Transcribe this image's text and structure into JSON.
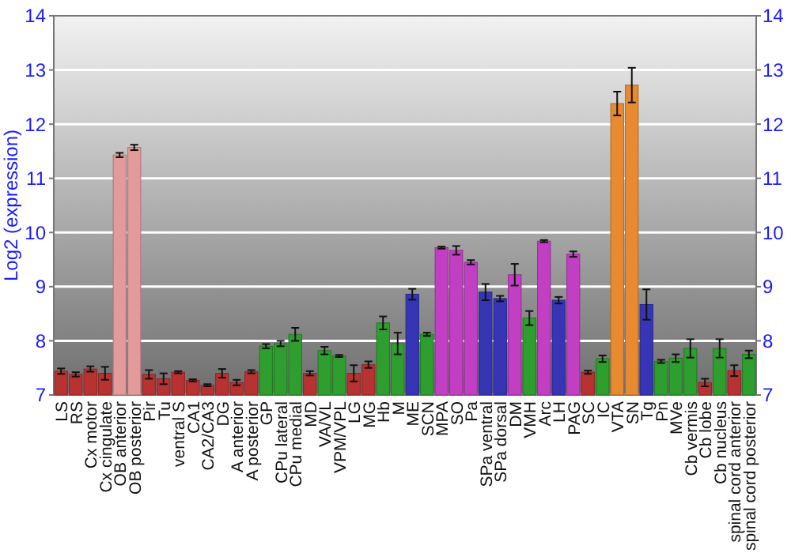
{
  "chart_data": {
    "type": "bar",
    "ylabel": "Log2 (expression)",
    "categories": [
      "LS",
      "RS",
      "Cx motor",
      "Cx cingulate",
      "OB anterior",
      "OB posterior",
      "Pir",
      "Tu",
      "ventral S",
      "CA1",
      "CA2/CA3",
      "DG",
      "A anterior",
      "A posterior",
      "GP",
      "CPu lateral",
      "CPu medial",
      "MD",
      "VA/VL",
      "VPM/VPL",
      "LG",
      "MG",
      "Hb",
      "M",
      "ME",
      "SCN",
      "MPA",
      "SO",
      "Pa",
      "SPa ventral",
      "SPa dorsal",
      "DM",
      "VMH",
      "Arc",
      "LH",
      "PAG",
      "SC",
      "IC",
      "VTA",
      "SN",
      "Tg",
      "Pn",
      "MVe",
      "Cb vermis",
      "Cb lobe",
      "Cb nucleus",
      "spinal cord anterior",
      "spinal cord posterior"
    ],
    "values": [
      7.44,
      7.38,
      7.48,
      7.4,
      11.43,
      11.57,
      7.38,
      7.3,
      7.42,
      7.27,
      7.18,
      7.4,
      7.23,
      7.43,
      7.9,
      7.95,
      8.12,
      7.4,
      7.82,
      7.72,
      7.4,
      7.56,
      8.33,
      7.95,
      8.86,
      8.12,
      9.72,
      9.67,
      9.45,
      8.9,
      8.78,
      9.22,
      8.42,
      9.84,
      8.75,
      9.6,
      7.42,
      7.67,
      12.38,
      12.72,
      8.67,
      7.62,
      7.68,
      7.86,
      7.23,
      7.86,
      7.45,
      7.75
    ],
    "errors": [
      0.05,
      0.04,
      0.05,
      0.12,
      0.04,
      0.05,
      0.08,
      0.1,
      0.02,
      0.02,
      0.02,
      0.08,
      0.05,
      0.03,
      0.04,
      0.05,
      0.12,
      0.04,
      0.07,
      0.02,
      0.15,
      0.06,
      0.12,
      0.2,
      0.1,
      0.03,
      0.02,
      0.08,
      0.04,
      0.15,
      0.05,
      0.2,
      0.13,
      0.02,
      0.06,
      0.05,
      0.03,
      0.06,
      0.22,
      0.32,
      0.28,
      0.03,
      0.07,
      0.17,
      0.07,
      0.17,
      0.1,
      0.07
    ],
    "colors": [
      "#b83232",
      "#b83232",
      "#b83232",
      "#b83232",
      "#e39a9a",
      "#e39a9a",
      "#b83232",
      "#b83232",
      "#b83232",
      "#b83232",
      "#b83232",
      "#b83232",
      "#b83232",
      "#b83232",
      "#2e9e2e",
      "#2e9e2e",
      "#2e9e2e",
      "#b83232",
      "#2e9e2e",
      "#2e9e2e",
      "#b83232",
      "#b83232",
      "#2e9e2e",
      "#2e9e2e",
      "#3535b5",
      "#2e9e2e",
      "#c23ec2",
      "#c23ec2",
      "#c23ec2",
      "#3535b5",
      "#3535b5",
      "#c23ec2",
      "#2e9e2e",
      "#c23ec2",
      "#3535b5",
      "#c23ec2",
      "#b83232",
      "#2e9e2e",
      "#e88a30",
      "#e88a30",
      "#3535b5",
      "#2e9e2e",
      "#2e9e2e",
      "#2e9e2e",
      "#b83232",
      "#2e9e2e",
      "#b83232",
      "#2e9e2e"
    ],
    "ylim": [
      7,
      14
    ],
    "yticks": [
      7,
      8,
      9,
      10,
      11,
      12,
      13,
      14
    ],
    "y2lim": [
      7,
      14
    ],
    "y2ticks": [
      7,
      8,
      9,
      10,
      11,
      12,
      13,
      14
    ],
    "grid": "y"
  }
}
